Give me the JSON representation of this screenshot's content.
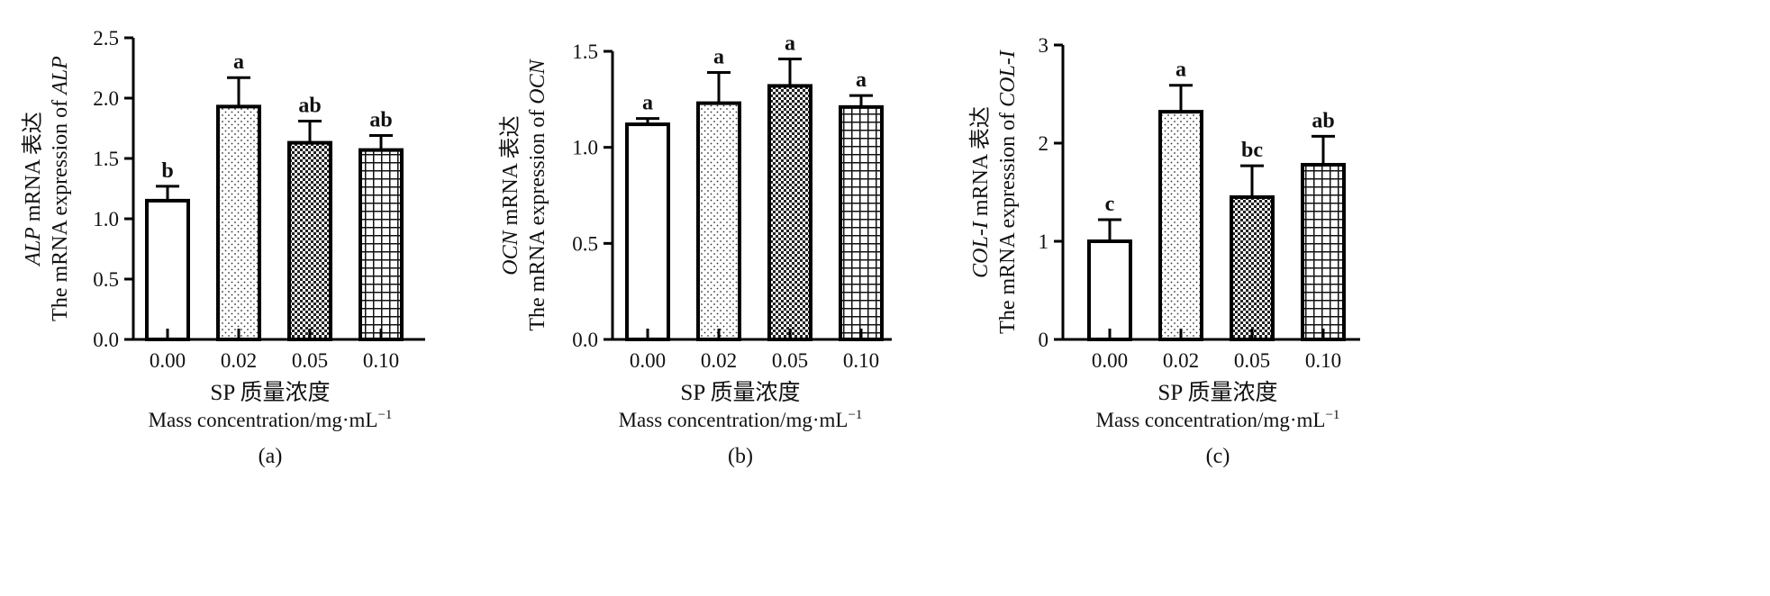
{
  "chart_data": [
    {
      "type": "bar",
      "panel_label": "(a)",
      "categories": [
        "0.00",
        "0.02",
        "0.05",
        "0.10"
      ],
      "values": [
        1.15,
        1.93,
        1.63,
        1.57
      ],
      "errors": [
        0.12,
        0.24,
        0.18,
        0.12
      ],
      "significance": [
        "b",
        "a",
        "ab",
        "ab"
      ],
      "patterns": [
        "none",
        "dots",
        "checker",
        "grid"
      ],
      "ylim": [
        0,
        2.5
      ],
      "yticks": [
        "0.0",
        "0.5",
        "1.0",
        "1.5",
        "2.0",
        "2.5"
      ],
      "ylabel_cn": {
        "gene": "ALP",
        "rest": " mRNA 表达"
      },
      "ylabel_en": {
        "prefix": "The mRNA expression of ",
        "gene": "ALP"
      },
      "xlabel_cn": "SP 质量浓度",
      "xlabel_en": {
        "text": "Mass concentration/mg·mL",
        "sup": "−1"
      }
    },
    {
      "type": "bar",
      "panel_label": "(b)",
      "categories": [
        "0.00",
        "0.02",
        "0.05",
        "0.10"
      ],
      "values": [
        1.12,
        1.23,
        1.32,
        1.21
      ],
      "errors": [
        0.03,
        0.16,
        0.14,
        0.06
      ],
      "significance": [
        "a",
        "a",
        "a",
        "a"
      ],
      "patterns": [
        "none",
        "dots",
        "checker",
        "grid"
      ],
      "ylim": [
        0,
        1.5
      ],
      "yticks": [
        "0.0",
        "0.5",
        "1.0",
        "1.5"
      ],
      "ylabel_cn": {
        "gene": "OCN",
        "rest": " mRNA 表达"
      },
      "ylabel_en": {
        "prefix": "The mRNA expression of ",
        "gene": "OCN"
      },
      "xlabel_cn": "SP 质量浓度",
      "xlabel_en": {
        "text": "Mass concentration/mg·mL",
        "sup": "−1"
      }
    },
    {
      "type": "bar",
      "panel_label": "(c)",
      "categories": [
        "0.00",
        "0.02",
        "0.05",
        "0.10"
      ],
      "values": [
        1.0,
        2.32,
        1.45,
        1.78
      ],
      "errors": [
        0.22,
        0.27,
        0.32,
        0.29
      ],
      "significance": [
        "c",
        "a",
        "bc",
        "ab"
      ],
      "patterns": [
        "none",
        "dots",
        "checker",
        "grid"
      ],
      "ylim": [
        0,
        3
      ],
      "yticks": [
        "0",
        "1",
        "2",
        "3"
      ],
      "ylabel_cn": {
        "gene": "COL-I",
        "rest": " mRNA 表达"
      },
      "ylabel_en": {
        "prefix": "The mRNA expression of ",
        "gene": "COL-I"
      },
      "xlabel_cn": "SP 质量浓度",
      "xlabel_en": {
        "text": "Mass concentration/mg·mL",
        "sup": "−1"
      }
    }
  ]
}
